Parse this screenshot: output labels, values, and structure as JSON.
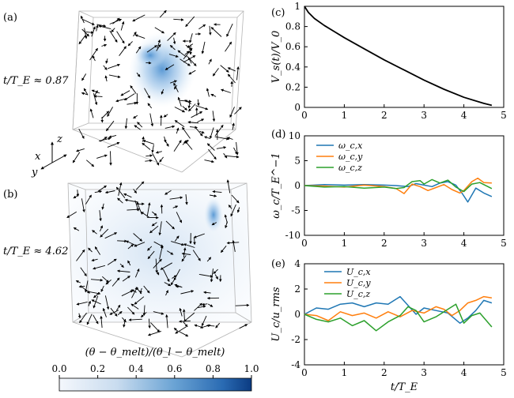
{
  "colors": {
    "blue": "#1f77b4",
    "orange": "#ff7f0e",
    "green": "#2ca02c",
    "colormap_low": "#f3f6fb",
    "colormap_high": "#0b3b82"
  },
  "panels": {
    "a": {
      "tag": "(a)",
      "time_label": "t/T_E ≈ 0.87"
    },
    "b": {
      "tag": "(b)",
      "time_label": "t/T_E ≈ 4.62"
    },
    "c": {
      "tag": "(c)"
    },
    "d": {
      "tag": "(d)"
    },
    "e": {
      "tag": "(e)"
    }
  },
  "axes_triad": {
    "x": "x",
    "y": "y",
    "z": "z"
  },
  "colorbar": {
    "label": "(θ − θ_melt)/(θ_l − θ_melt)",
    "ticks": [
      "0.0",
      "0.2",
      "0.4",
      "0.6",
      "0.8",
      "1.0"
    ]
  },
  "shared_xlabel": "t/T_E",
  "chart_data": [
    {
      "id": "c",
      "type": "line",
      "ylabel": "V_s(t)/V_0",
      "xlim": [
        0,
        5
      ],
      "ylim": [
        0,
        1
      ],
      "xticks": [
        0,
        1,
        2,
        3,
        4,
        5
      ],
      "yticks": [
        0,
        0.2,
        0.4,
        0.6,
        0.8,
        1
      ],
      "series": [
        {
          "x": [
            0,
            0.1,
            0.25,
            0.5,
            0.75,
            1.0,
            1.5,
            2.0,
            2.5,
            3.0,
            3.5,
            4.0,
            4.5,
            4.7
          ],
          "y": [
            1.0,
            0.94,
            0.88,
            0.81,
            0.75,
            0.69,
            0.58,
            0.47,
            0.37,
            0.27,
            0.18,
            0.1,
            0.04,
            0.02
          ],
          "color": "#000000"
        }
      ]
    },
    {
      "id": "d",
      "type": "line",
      "ylabel": "ω_c/T_E^−1",
      "xlim": [
        0,
        5
      ],
      "ylim": [
        -10,
        10
      ],
      "xticks": [
        0,
        1,
        2,
        3,
        4,
        5
      ],
      "yticks": [
        -10,
        -5,
        0,
        5,
        10
      ],
      "legend": "top-left",
      "series": [
        {
          "name": "ω_c,x",
          "color": "#1f77b4",
          "x": [
            0,
            0.5,
            1.0,
            1.5,
            2.0,
            2.3,
            2.6,
            2.8,
            3.0,
            3.2,
            3.4,
            3.6,
            3.8,
            3.95,
            4.1,
            4.3,
            4.5,
            4.7
          ],
          "y": [
            0,
            0.2,
            0.1,
            0.2,
            0.1,
            0.0,
            -0.2,
            0.4,
            0.1,
            -0.2,
            0.5,
            0.8,
            0.1,
            -1.5,
            -3.3,
            -0.5,
            -1.5,
            -2.2
          ]
        },
        {
          "name": "ω_c,y",
          "color": "#ff7f0e",
          "x": [
            0,
            0.5,
            1.0,
            1.5,
            2.0,
            2.3,
            2.5,
            2.7,
            2.9,
            3.1,
            3.3,
            3.5,
            3.7,
            3.9,
            4.0,
            4.2,
            4.35,
            4.5,
            4.7
          ],
          "y": [
            0,
            -0.1,
            -0.3,
            0.1,
            -0.2,
            -0.6,
            -1.6,
            0.3,
            -0.2,
            -1.0,
            -0.4,
            0.2,
            -0.8,
            -1.5,
            -1.0,
            0.8,
            1.5,
            0.6,
            0.5
          ]
        },
        {
          "name": "ω_c,z",
          "color": "#2ca02c",
          "x": [
            0,
            0.5,
            1.0,
            1.5,
            2.0,
            2.3,
            2.5,
            2.7,
            2.9,
            3.0,
            3.2,
            3.4,
            3.6,
            3.8,
            4.0,
            4.2,
            4.4,
            4.7
          ],
          "y": [
            0,
            -0.3,
            -0.2,
            -0.5,
            -0.3,
            -0.6,
            -0.4,
            0.8,
            1.0,
            0.3,
            1.2,
            0.5,
            1.1,
            -0.3,
            -1.2,
            0.3,
            0.6,
            -0.6
          ]
        }
      ]
    },
    {
      "id": "e",
      "type": "line",
      "ylabel": "U_c/u_rms",
      "xlabel": "t/T_E",
      "xlim": [
        0,
        5
      ],
      "ylim": [
        -4,
        4
      ],
      "xticks": [
        0,
        1,
        2,
        3,
        4,
        5
      ],
      "yticks": [
        -4,
        -2,
        0,
        2,
        4
      ],
      "legend": "top-center",
      "series": [
        {
          "name": "U_c,x",
          "color": "#1f77b4",
          "x": [
            0,
            0.3,
            0.6,
            0.9,
            1.2,
            1.5,
            1.8,
            2.1,
            2.4,
            2.6,
            2.8,
            3.0,
            3.3,
            3.6,
            3.9,
            4.1,
            4.3,
            4.5,
            4.7
          ],
          "y": [
            0,
            0.5,
            0.4,
            0.8,
            0.9,
            0.6,
            0.9,
            0.8,
            1.4,
            0.7,
            0.0,
            0.5,
            0.3,
            0.1,
            -0.7,
            -0.3,
            0.3,
            1.1,
            0.9
          ]
        },
        {
          "name": "U_c,y",
          "color": "#ff7f0e",
          "x": [
            0,
            0.3,
            0.6,
            0.9,
            1.2,
            1.5,
            1.8,
            2.1,
            2.4,
            2.7,
            3.0,
            3.3,
            3.5,
            3.7,
            3.9,
            4.1,
            4.3,
            4.5,
            4.7
          ],
          "y": [
            0,
            -0.1,
            -0.5,
            0.2,
            -0.1,
            0.1,
            -0.3,
            0.2,
            -0.2,
            0.3,
            0.1,
            0.6,
            0.4,
            -0.1,
            0.3,
            0.9,
            1.1,
            1.4,
            1.3
          ]
        },
        {
          "name": "U_c,z",
          "color": "#2ca02c",
          "x": [
            0,
            0.3,
            0.6,
            0.9,
            1.2,
            1.5,
            1.8,
            2.1,
            2.4,
            2.6,
            2.8,
            3.0,
            3.3,
            3.6,
            3.8,
            4.0,
            4.2,
            4.4,
            4.7
          ],
          "y": [
            0,
            -0.4,
            -0.6,
            -0.3,
            -0.9,
            -0.5,
            -1.3,
            -0.6,
            -0.1,
            0.6,
            0.3,
            -0.6,
            -0.2,
            0.4,
            0.8,
            -0.7,
            -0.1,
            0.1,
            -1.0
          ]
        }
      ]
    }
  ]
}
